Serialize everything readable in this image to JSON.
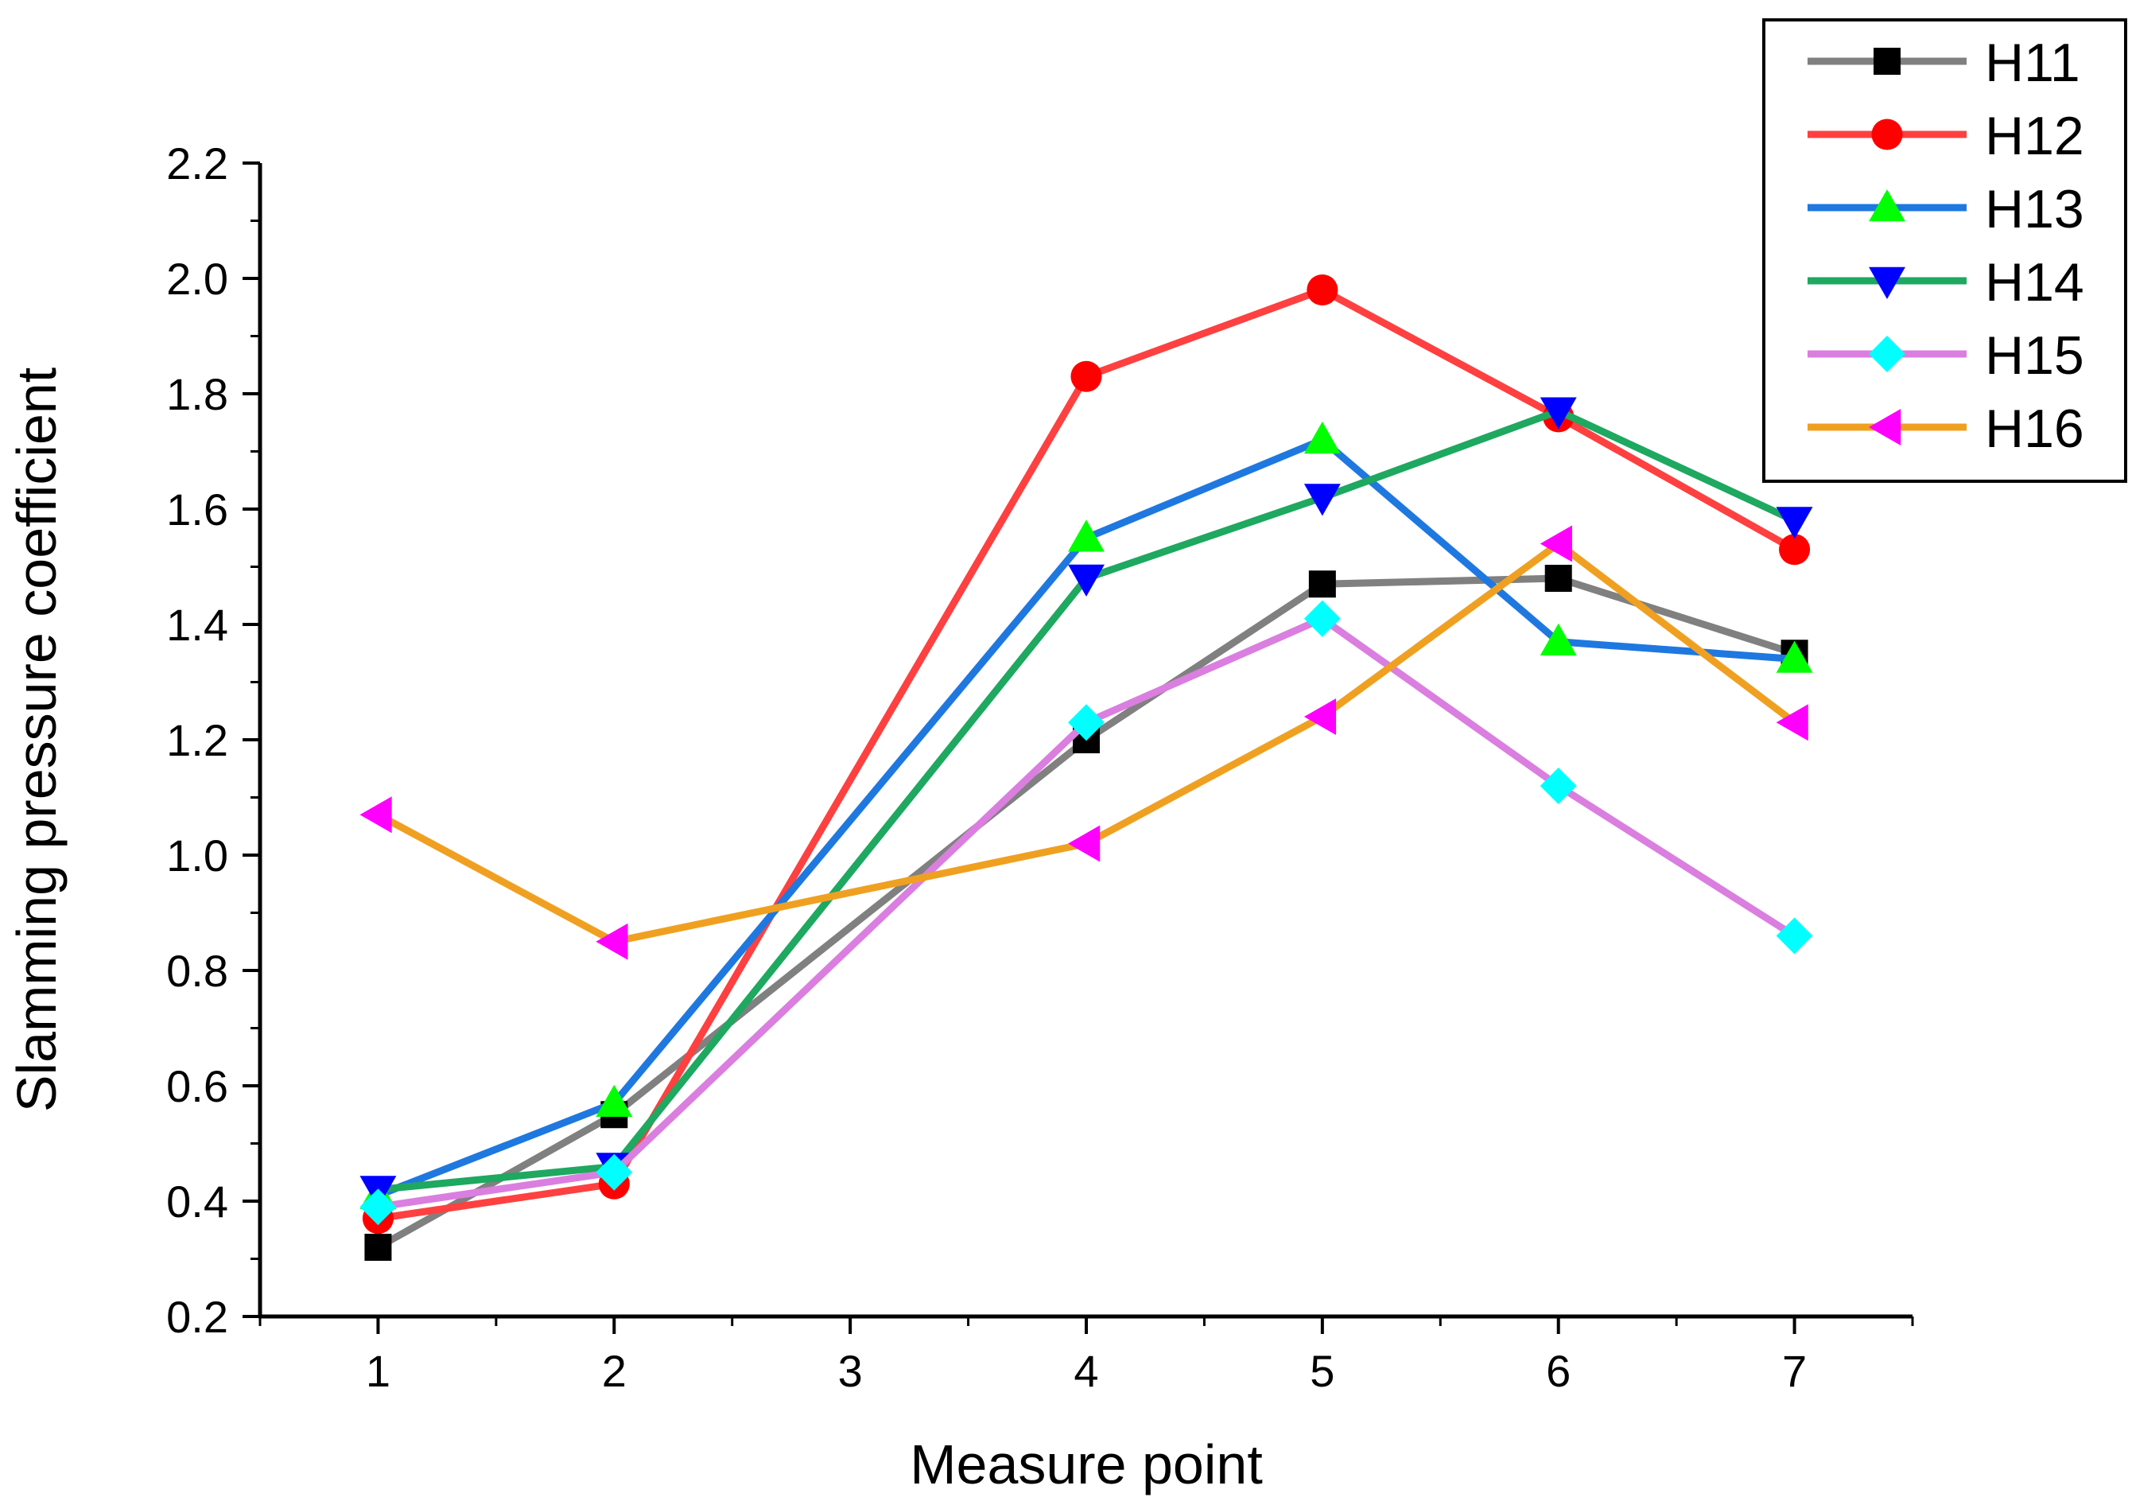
{
  "chart_data": {
    "type": "line",
    "title": "",
    "xlabel": "Measure point",
    "ylabel": "Slamming pressure coefficient",
    "x": [
      1,
      2,
      4,
      5,
      6,
      7
    ],
    "xticks": [
      "1",
      "2",
      "3",
      "4",
      "5",
      "6",
      "7"
    ],
    "yticks": [
      "0.2",
      "0.4",
      "0.6",
      "0.8",
      "1.0",
      "1.2",
      "1.4",
      "1.6",
      "1.8",
      "2.0",
      "2.2"
    ],
    "xlim": [
      0.5,
      7.5
    ],
    "ylim": [
      0.2,
      2.2
    ],
    "grid": false,
    "legend_position": "top-right",
    "series": [
      {
        "name": "H11",
        "color": "#808080",
        "marker": "square",
        "marker_color": "#000000",
        "values": [
          0.32,
          0.55,
          1.2,
          1.47,
          1.48,
          1.35
        ]
      },
      {
        "name": "H12",
        "color": "#ff4040",
        "marker": "circle",
        "marker_color": "#ff0000",
        "values": [
          0.37,
          0.43,
          1.83,
          1.98,
          1.76,
          1.53
        ]
      },
      {
        "name": "H13",
        "color": "#1e78e0",
        "marker": "triangle-up",
        "marker_color": "#00ff00",
        "values": [
          0.41,
          0.57,
          1.55,
          1.72,
          1.37,
          1.34
        ]
      },
      {
        "name": "H14",
        "color": "#1ea860",
        "marker": "triangle-down",
        "marker_color": "#0000ff",
        "values": [
          0.42,
          0.46,
          1.48,
          1.62,
          1.77,
          1.58
        ]
      },
      {
        "name": "H15",
        "color": "#da7ee0",
        "marker": "diamond",
        "marker_color": "#00ffff",
        "values": [
          0.39,
          0.45,
          1.23,
          1.41,
          1.12,
          0.86
        ]
      },
      {
        "name": "H16",
        "color": "#f0a020",
        "marker": "triangle-left",
        "marker_color": "#ff00ff",
        "values": [
          1.07,
          0.85,
          1.02,
          1.24,
          1.54,
          1.23
        ]
      }
    ]
  }
}
